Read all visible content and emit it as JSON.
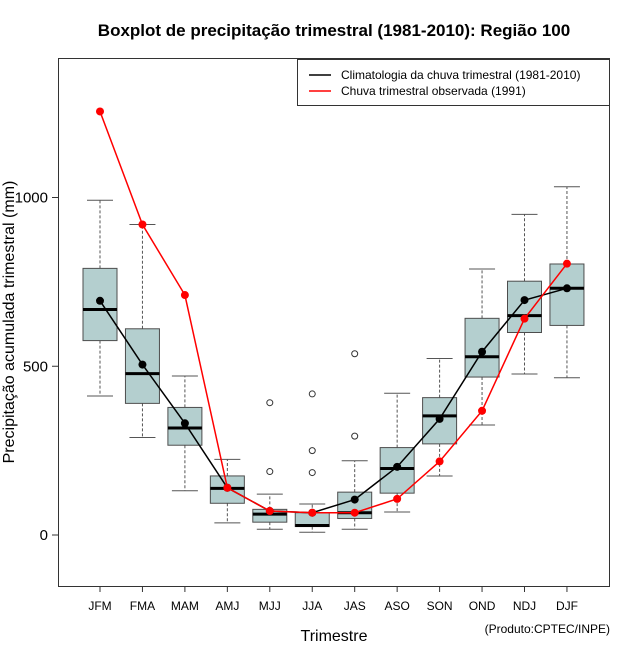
{
  "chart_data": {
    "type": "boxplot",
    "title": "Boxplot de precipitação trimestral (1981-2010): Região 100",
    "xlabel": "Trimestre",
    "ylabel": "Precipitação acumulada trimestral (mm)",
    "credit": "(Produto:CPTEC/INPE)",
    "ylim": [
      -150,
      1380
    ],
    "yticks": [
      0,
      500,
      1000
    ],
    "grid": false,
    "legend_position": "top-right",
    "categories": [
      "JFM",
      "FMA",
      "MAM",
      "AMJ",
      "MJJ",
      "JJA",
      "JAS",
      "ASO",
      "SON",
      "OND",
      "NDJ",
      "DJF"
    ],
    "boxes": [
      {
        "category": "JFM",
        "whisker_low": 412,
        "q1": 576,
        "median": 668,
        "q3": 790,
        "whisker_high": 992,
        "outliers": []
      },
      {
        "category": "FMA",
        "whisker_low": 289,
        "q1": 390,
        "median": 478,
        "q3": 611,
        "whisker_high": 920,
        "outliers": []
      },
      {
        "category": "MAM",
        "whisker_low": 131,
        "q1": 266,
        "median": 317,
        "q3": 378,
        "whisker_high": 471,
        "outliers": []
      },
      {
        "category": "AMJ",
        "whisker_low": 36,
        "q1": 94,
        "median": 138,
        "q3": 175,
        "whisker_high": 224,
        "outliers": []
      },
      {
        "category": "MJJ",
        "whisker_low": 17,
        "q1": 38,
        "median": 62,
        "q3": 76,
        "whisker_high": 121,
        "outliers": [
          188,
          392
        ]
      },
      {
        "category": "JJA",
        "whisker_low": 8,
        "q1": 25,
        "median": 28,
        "q3": 66,
        "whisker_high": 92,
        "outliers": [
          185,
          250,
          418
        ]
      },
      {
        "category": "JAS",
        "whisker_low": 17,
        "q1": 49,
        "median": 66,
        "q3": 127,
        "whisker_high": 220,
        "outliers": [
          293,
          537
        ]
      },
      {
        "category": "ASO",
        "whisker_low": 68,
        "q1": 124,
        "median": 197,
        "q3": 259,
        "whisker_high": 420,
        "outliers": []
      },
      {
        "category": "SON",
        "whisker_low": 175,
        "q1": 270,
        "median": 353,
        "q3": 407,
        "whisker_high": 523,
        "outliers": []
      },
      {
        "category": "OND",
        "whisker_low": 326,
        "q1": 468,
        "median": 528,
        "q3": 642,
        "whisker_high": 788,
        "outliers": []
      },
      {
        "category": "NDJ",
        "whisker_low": 477,
        "q1": 600,
        "median": 650,
        "q3": 752,
        "whisker_high": 950,
        "outliers": []
      },
      {
        "category": "DJF",
        "whisker_low": 466,
        "q1": 621,
        "median": 731,
        "q3": 803,
        "whisker_high": 1032,
        "outliers": []
      }
    ],
    "series": [
      {
        "name": "Climatologia da chuva trimestral (1981-2010)",
        "color": "#000000",
        "values": [
          694,
          505,
          331,
          140,
          71,
          66,
          105,
          202,
          344,
          543,
          696,
          731
        ]
      },
      {
        "name": "Chuva trimestral observada (1991)",
        "color": "#ff0000",
        "values": [
          1255,
          920,
          711,
          140,
          71,
          66,
          66,
          107,
          218,
          368,
          641,
          804
        ]
      }
    ],
    "colors": {
      "box_fill": "#b4cfcf",
      "box_border": "#4d4d4d",
      "whisker": "#555555"
    }
  }
}
